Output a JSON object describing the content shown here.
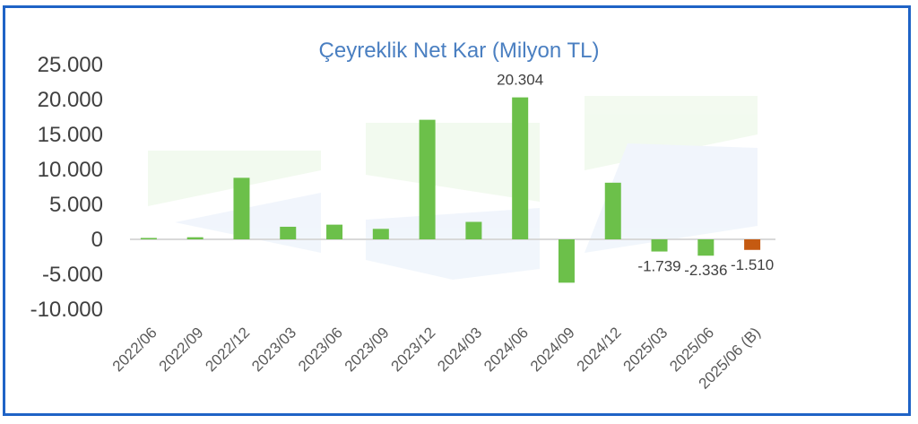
{
  "chart_data": {
    "type": "bar",
    "title": "Çeyreklik Net Kar (Milyon TL)",
    "xlabel": "",
    "ylabel": "",
    "ylim": [
      -10000,
      25000
    ],
    "yticks": [
      25000,
      20000,
      15000,
      10000,
      5000,
      0,
      -5000,
      -10000
    ],
    "ytick_labels": [
      "25.000",
      "20.000",
      "15.000",
      "10.000",
      "5.000",
      "0",
      "-5.000",
      "-10.000"
    ],
    "categories": [
      "2022/06",
      "2022/09",
      "2022/12",
      "2023/03",
      "2023/06",
      "2023/09",
      "2023/12",
      "2024/03",
      "2024/06",
      "2024/09",
      "2024/12",
      "2025/03",
      "2025/06",
      "2025/06 (B)"
    ],
    "values": [
      200,
      300,
      8800,
      1800,
      2100,
      1500,
      17100,
      2500,
      20304,
      -6200,
      8100,
      -1739,
      -2336,
      -1510
    ],
    "data_labels": [
      "",
      "",
      "",
      "",
      "",
      "",
      "",
      "",
      "20.304",
      "",
      "",
      "-1.739",
      "-2.336",
      "-1.510"
    ],
    "colors": {
      "actual": "#6cc04a",
      "estimate": "#c55a11",
      "frame": "#1f63c6",
      "title": "#4a7fc1",
      "zero_line": "#d9d9d9"
    },
    "estimate_categories": [
      "2025/06 (B)"
    ],
    "grid": false,
    "legend": "none"
  }
}
